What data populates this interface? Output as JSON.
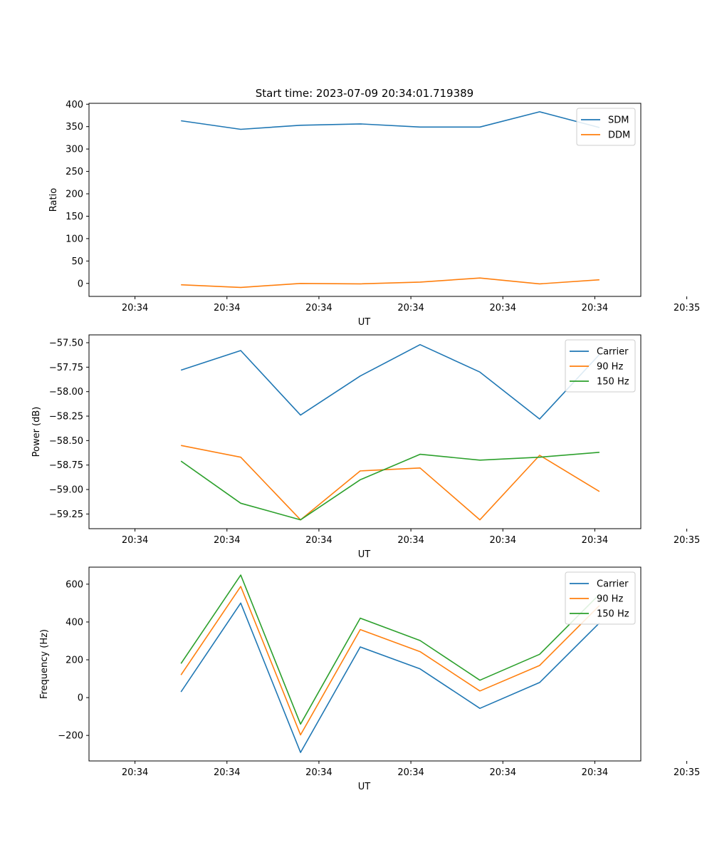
{
  "figure_title": "Start time: 2023-07-09 20:34:01.719389",
  "colors": {
    "blue": "#1f77b4",
    "orange": "#ff7f0e",
    "green": "#2ca02c"
  },
  "chart_data": [
    {
      "type": "line",
      "id": "ratio",
      "title": "Start time: 2023-07-09 20:34:01.719389",
      "xlabel": "UT",
      "ylabel": "Ratio",
      "xlim": [
        -0.5,
        5.5
      ],
      "x_ticks": [
        0,
        1,
        2,
        3,
        4,
        5,
        6
      ],
      "x_tick_labels": [
        "20:34",
        "20:34",
        "20:34",
        "20:34",
        "20:34",
        "20:34",
        "20:35"
      ],
      "ylim": [
        -29,
        402
      ],
      "y_ticks": [
        0,
        50,
        100,
        150,
        200,
        250,
        300,
        350,
        400
      ],
      "y_tick_labels": [
        "0",
        "50",
        "100",
        "150",
        "200",
        "250",
        "300",
        "350",
        "400"
      ],
      "x": [
        0.5,
        1.15,
        1.8,
        2.45,
        3.1,
        3.75,
        4.4,
        5.05
      ],
      "legend_position": "top-right",
      "series": [
        {
          "name": "SDM",
          "color": "#1f77b4",
          "values": [
            363,
            344,
            353,
            356,
            349,
            349,
            383,
            348
          ]
        },
        {
          "name": "DDM",
          "color": "#ff7f0e",
          "values": [
            -3,
            -9,
            0,
            -1,
            3,
            12,
            -1,
            8
          ]
        }
      ]
    },
    {
      "type": "line",
      "id": "power",
      "title": "",
      "xlabel": "UT",
      "ylabel": "Power (dB)",
      "xlim": [
        -0.5,
        5.5
      ],
      "x_ticks": [
        0,
        1,
        2,
        3,
        4,
        5,
        6
      ],
      "x_tick_labels": [
        "20:34",
        "20:34",
        "20:34",
        "20:34",
        "20:34",
        "20:34",
        "20:35"
      ],
      "ylim": [
        -59.4,
        -57.42
      ],
      "y_ticks": [
        -59.25,
        -59.0,
        -58.75,
        -58.5,
        -58.25,
        -58.0,
        -57.75,
        -57.5
      ],
      "y_tick_labels": [
        "−59.25",
        "−59.00",
        "−58.75",
        "−58.50",
        "−58.25",
        "−58.00",
        "−57.75",
        "−57.50"
      ],
      "x": [
        0.5,
        1.15,
        1.8,
        2.45,
        3.1,
        3.75,
        4.4,
        5.05
      ],
      "legend_position": "top-right",
      "series": [
        {
          "name": "Carrier",
          "color": "#1f77b4",
          "values": [
            -57.78,
            -57.58,
            -58.24,
            -57.84,
            -57.52,
            -57.8,
            -58.28,
            -57.62
          ]
        },
        {
          "name": "90 Hz",
          "color": "#ff7f0e",
          "values": [
            -58.55,
            -58.67,
            -59.31,
            -58.81,
            -58.78,
            -59.31,
            -58.65,
            -59.02
          ]
        },
        {
          "name": "150 Hz",
          "color": "#2ca02c",
          "values": [
            -58.71,
            -59.14,
            -59.31,
            -58.9,
            -58.64,
            -58.7,
            -58.67,
            -58.62
          ]
        }
      ]
    },
    {
      "type": "line",
      "id": "frequency",
      "title": "",
      "xlabel": "UT",
      "ylabel": "Frequency (Hz)",
      "xlim": [
        -0.5,
        5.5
      ],
      "x_ticks": [
        0,
        1,
        2,
        3,
        4,
        5,
        6
      ],
      "x_tick_labels": [
        "20:34",
        "20:34",
        "20:34",
        "20:34",
        "20:34",
        "20:34",
        "20:35"
      ],
      "ylim": [
        -335,
        690
      ],
      "y_ticks": [
        -200,
        0,
        200,
        400,
        600
      ],
      "y_tick_labels": [
        "−200",
        "0",
        "200",
        "400",
        "600"
      ],
      "x": [
        0.5,
        1.15,
        1.8,
        2.45,
        3.1,
        3.75,
        4.4,
        5.05
      ],
      "legend_position": "top-right",
      "series": [
        {
          "name": "Carrier",
          "color": "#1f77b4",
          "values": [
            30,
            500,
            -290,
            268,
            152,
            -57,
            80,
            395
          ]
        },
        {
          "name": "90 Hz",
          "color": "#ff7f0e",
          "values": [
            120,
            588,
            -197,
            360,
            243,
            35,
            170,
            487
          ]
        },
        {
          "name": "150 Hz",
          "color": "#2ca02c",
          "values": [
            180,
            648,
            -140,
            420,
            302,
            92,
            229,
            546
          ]
        }
      ]
    }
  ]
}
